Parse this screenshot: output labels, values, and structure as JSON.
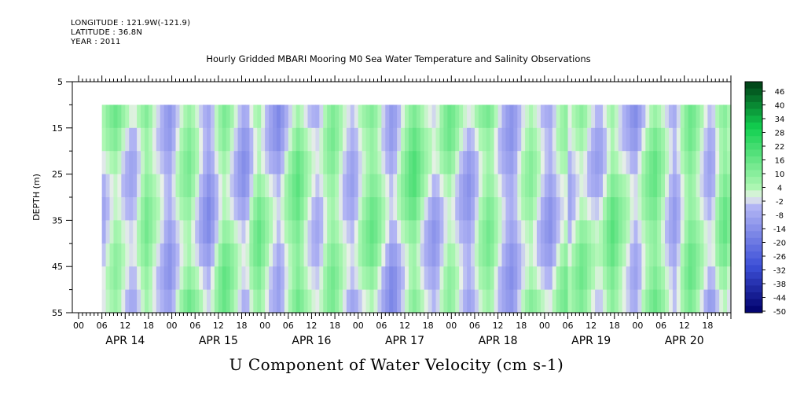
{
  "header": {
    "longitude": "LONGITUDE : 121.9W(-121.9)",
    "latitude": "LATITUDE : 36.8N",
    "year": "YEAR : 2011"
  },
  "colors": {
    "negative_extreme": "#00006a",
    "negative_strong": "#3c4fd7",
    "negative_weak": "#b3b6f4",
    "zero": "#e8f0e8",
    "positive_weak": "#aef7b4",
    "positive_strong": "#12d050",
    "positive_extreme": "#003d15"
  },
  "chart_data": {
    "type": "heatmap",
    "title": "Hourly Gridded MBARI Mooring M0 Sea Water Temperature and Salinity Observations",
    "subtitle": "U Component of Water Velocity (cm s-1)",
    "ylabel": "DEPTH (m)",
    "xlabel": "",
    "ylim": [
      5,
      55
    ],
    "y_reversed": true,
    "y_ticks": [
      "5",
      "15",
      "25",
      "35",
      "45",
      "55"
    ],
    "data_depth_range": [
      10,
      55
    ],
    "data_time_start": "APR 14 06",
    "x_hour_ticks": [
      "00",
      "06",
      "12",
      "18"
    ],
    "x_days": [
      "APR 14",
      "APR 15",
      "APR 16",
      "APR 17",
      "APR 18",
      "APR 19",
      "APR 20"
    ],
    "colorbar": {
      "labels": [
        "46",
        "40",
        "34",
        "28",
        "22",
        "16",
        "10",
        "4",
        "-2",
        "-8",
        "-14",
        "-20",
        "-26",
        "-32",
        "-38",
        "-44",
        "-50"
      ],
      "min": -50,
      "max": 50
    },
    "profile_values": [
      -2,
      2,
      5,
      8,
      6,
      2,
      -1,
      -3,
      -2,
      3,
      8,
      12,
      9,
      5,
      2,
      -1,
      -5,
      -7,
      -3,
      2,
      6,
      9,
      11,
      7,
      3,
      -2,
      -6,
      -9,
      -5,
      1,
      6,
      10,
      8,
      4,
      0,
      -4,
      -7,
      -5,
      2,
      7,
      10,
      6,
      2,
      -2,
      -5,
      -8,
      -4,
      1,
      5,
      9,
      12,
      8,
      3,
      -1,
      -4,
      -6,
      -3,
      2,
      6,
      8,
      5,
      1,
      -3,
      -6,
      -8,
      -5,
      0,
      4,
      7,
      10,
      8,
      4,
      -1,
      -5,
      -9,
      -7,
      -2,
      3,
      7,
      11,
      13,
      9,
      4,
      0,
      -3,
      -6,
      -4,
      1,
      5,
      8,
      6,
      2,
      -2,
      -5,
      -7,
      -4,
      1,
      6,
      9,
      12,
      10,
      5,
      1,
      -3,
      -6,
      -8,
      -5,
      0,
      4,
      7,
      9,
      6,
      2,
      -2,
      -5,
      -7,
      -3,
      2,
      5,
      7
    ]
  }
}
